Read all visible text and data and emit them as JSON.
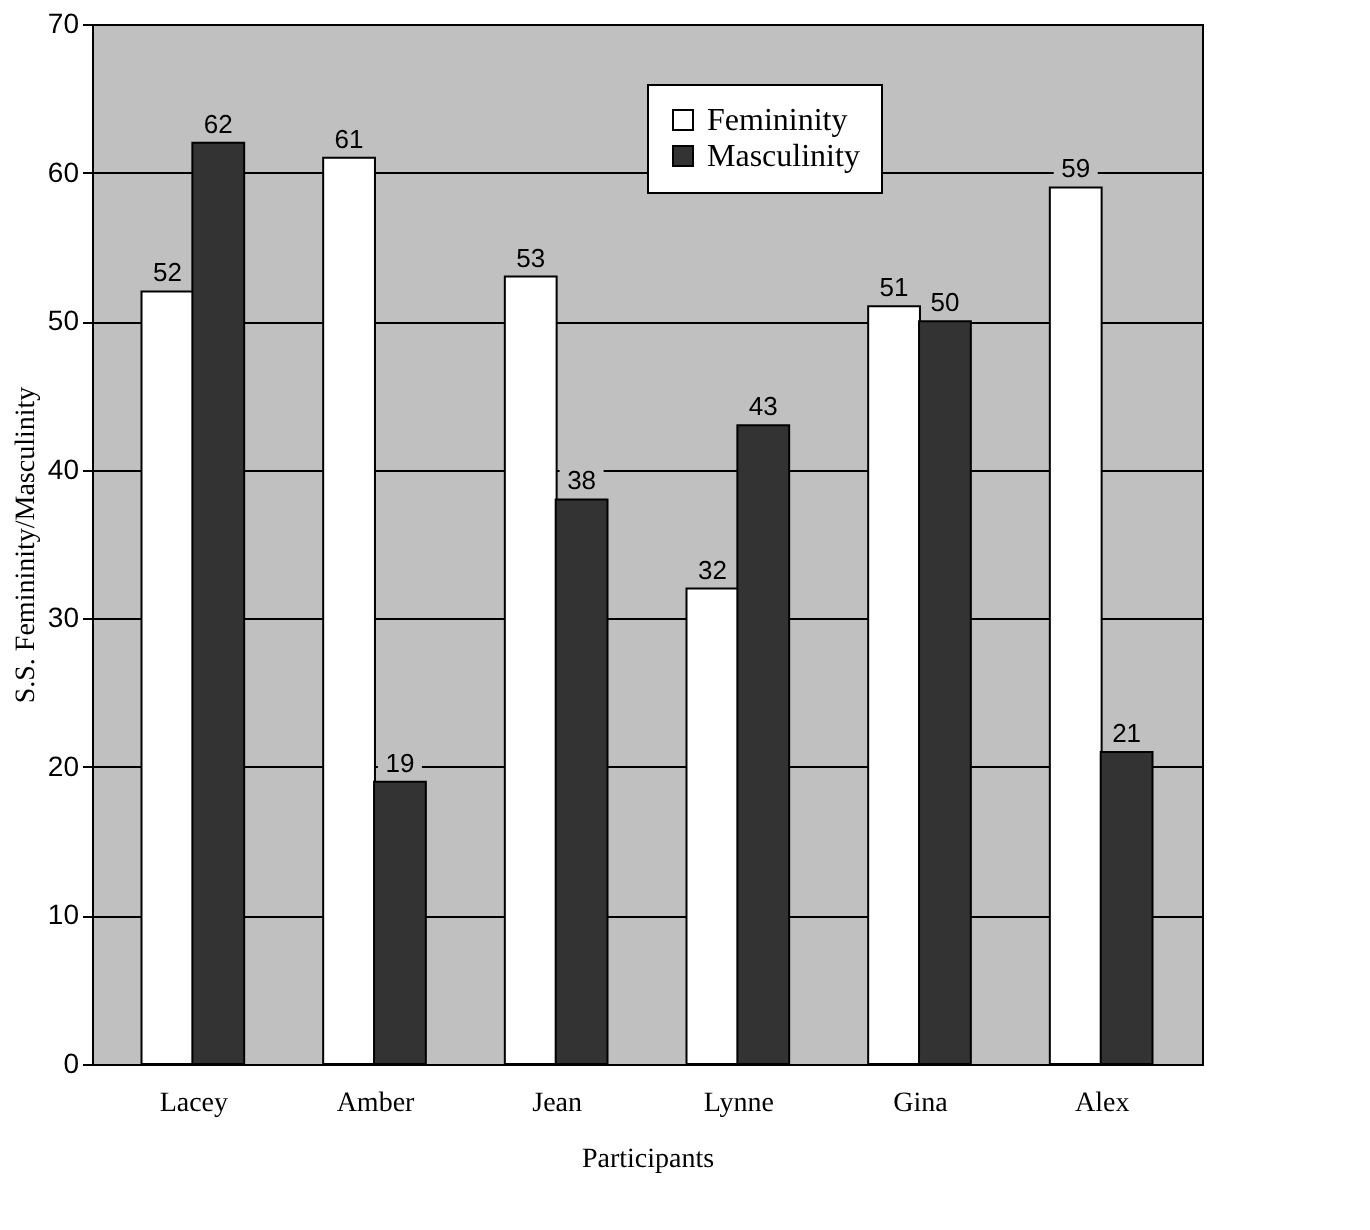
{
  "chart_data": {
    "type": "bar",
    "xlabel": "Participants",
    "ylabel": "S.S. Femininity/Masculinity",
    "categories": [
      "Lacey",
      "Amber",
      "Jean",
      "Lynne",
      "Gina",
      "Alex"
    ],
    "series": [
      {
        "name": "Femininity",
        "color": "#ffffff",
        "values": [
          52,
          61,
          53,
          32,
          51,
          59
        ]
      },
      {
        "name": "Masculinity",
        "color": "#333333",
        "values": [
          62,
          19,
          38,
          43,
          50,
          21
        ]
      }
    ],
    "ylim": [
      0,
      70
    ],
    "yticks": [
      0,
      10,
      20,
      30,
      40,
      50,
      60,
      70
    ],
    "grid": "y",
    "legend": "top",
    "data_labels": true
  }
}
